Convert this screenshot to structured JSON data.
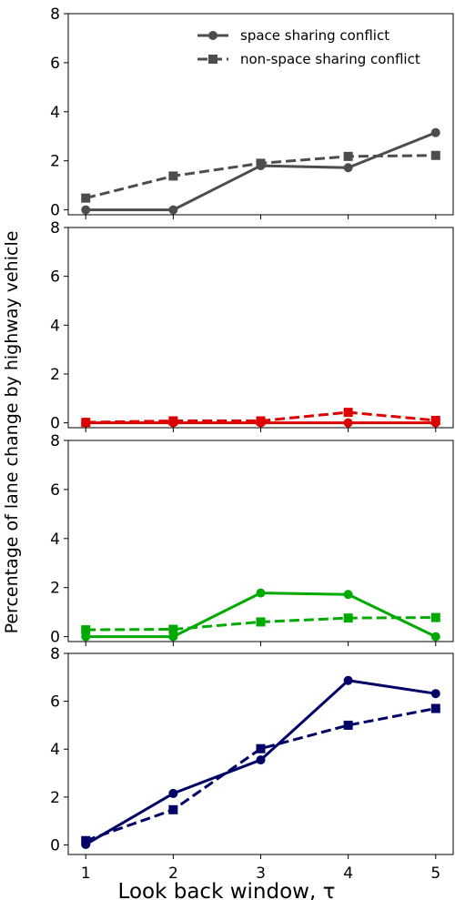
{
  "figure": {
    "shared_ylabel": "Percentage of lane change by highway vehicle",
    "shared_xlabel": "Look back window, τ"
  },
  "chart_data": [
    {
      "type": "line",
      "x": [
        1,
        2,
        3,
        4,
        5
      ],
      "xticks": [
        "1",
        "2",
        "3",
        "4",
        "5"
      ],
      "ylim": [
        -0.2,
        8
      ],
      "yticks": [
        0,
        2,
        4,
        6,
        8
      ],
      "color": "#4d4d4d",
      "legend": {
        "placement": "top-right"
      },
      "series": [
        {
          "name": "space sharing conflict",
          "marker": "circle",
          "linestyle": "solid",
          "values": [
            0.0,
            0.0,
            1.8,
            1.72,
            3.15
          ]
        },
        {
          "name": "non-space sharing conflict",
          "marker": "square",
          "linestyle": "dashed",
          "values": [
            0.48,
            1.38,
            1.9,
            2.18,
            2.22
          ]
        }
      ]
    },
    {
      "type": "line",
      "x": [
        1,
        2,
        3,
        4,
        5
      ],
      "ylim": [
        -0.2,
        8
      ],
      "yticks": [
        0,
        2,
        4,
        6,
        8
      ],
      "color": "#dd0000",
      "series": [
        {
          "marker": "circle",
          "linestyle": "solid",
          "values": [
            0.0,
            0.0,
            0.0,
            0.0,
            0.0
          ]
        },
        {
          "marker": "square",
          "linestyle": "dashed",
          "values": [
            0.02,
            0.08,
            0.08,
            0.43,
            0.1
          ]
        }
      ]
    },
    {
      "type": "line",
      "x": [
        1,
        2,
        3,
        4,
        5
      ],
      "ylim": [
        -0.2,
        8
      ],
      "yticks": [
        0,
        2,
        4,
        6,
        8
      ],
      "color": "#00aa00",
      "series": [
        {
          "marker": "circle",
          "linestyle": "solid",
          "values": [
            0.0,
            0.0,
            1.78,
            1.72,
            0.0
          ]
        },
        {
          "marker": "square",
          "linestyle": "dashed",
          "values": [
            0.28,
            0.3,
            0.6,
            0.76,
            0.78
          ]
        }
      ]
    },
    {
      "type": "line",
      "x": [
        1,
        2,
        3,
        4,
        5
      ],
      "ylim": [
        -0.4,
        8
      ],
      "yticks": [
        0,
        2,
        4,
        6,
        8
      ],
      "color": "#000066",
      "series": [
        {
          "marker": "circle",
          "linestyle": "solid",
          "values": [
            0.02,
            2.15,
            3.55,
            6.87,
            6.32
          ]
        },
        {
          "marker": "square",
          "linestyle": "dashed",
          "values": [
            0.18,
            1.47,
            4.02,
            5.0,
            5.7
          ]
        }
      ]
    }
  ]
}
